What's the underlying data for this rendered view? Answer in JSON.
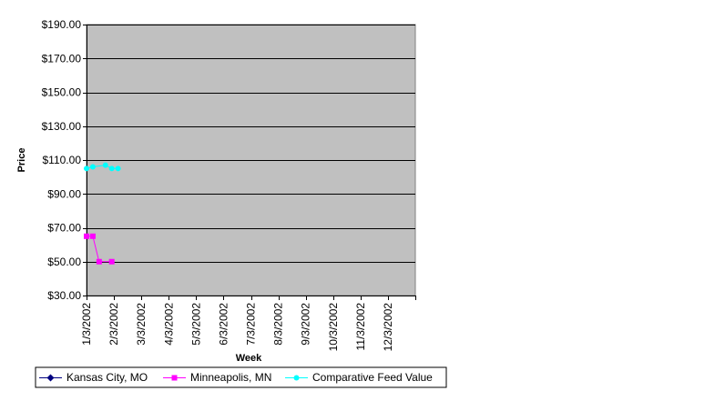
{
  "chart_data": {
    "type": "line",
    "title": "",
    "xlabel": "Week",
    "ylabel": "Price",
    "x_ticks": [
      "1/3/2002",
      "2/3/2002",
      "3/3/2002",
      "4/3/2002",
      "5/3/2002",
      "6/3/2002",
      "7/3/2002",
      "8/3/2002",
      "9/3/2002",
      "10/3/2002",
      "11/3/2002",
      "12/3/2002"
    ],
    "xlim": [
      "2002-01-03",
      "2003-01-03"
    ],
    "ylim": [
      30,
      190
    ],
    "y_ticks": [
      30,
      50,
      70,
      90,
      110,
      130,
      150,
      170,
      190
    ],
    "y_tick_labels": [
      "$30.00",
      "$50.00",
      "$70.00",
      "$90.00",
      "$110.00",
      "$130.00",
      "$150.00",
      "$170.00",
      "$190.00"
    ],
    "grid": "horizontal",
    "plot_background": "#c0c0c0",
    "legend_position": "bottom",
    "series": [
      {
        "name": "Kansas City, MO",
        "color": "#000080",
        "marker": "diamond",
        "points": []
      },
      {
        "name": "Minneapolis, MN",
        "color": "#ff00ff",
        "marker": "square",
        "points": [
          {
            "x": "2002-01-03",
            "y": 65
          },
          {
            "x": "2002-01-10",
            "y": 65
          },
          {
            "x": "2002-01-17",
            "y": 50
          },
          {
            "x": "2002-01-31",
            "y": 50
          }
        ]
      },
      {
        "name": "Comparative Feed Value",
        "color": "#00ffff",
        "marker": "circle",
        "points": [
          {
            "x": "2002-01-03",
            "y": 105
          },
          {
            "x": "2002-01-10",
            "y": 106
          },
          {
            "x": "2002-01-24",
            "y": 107
          },
          {
            "x": "2002-01-31",
            "y": 105
          },
          {
            "x": "2002-02-07",
            "y": 105
          }
        ]
      }
    ]
  }
}
